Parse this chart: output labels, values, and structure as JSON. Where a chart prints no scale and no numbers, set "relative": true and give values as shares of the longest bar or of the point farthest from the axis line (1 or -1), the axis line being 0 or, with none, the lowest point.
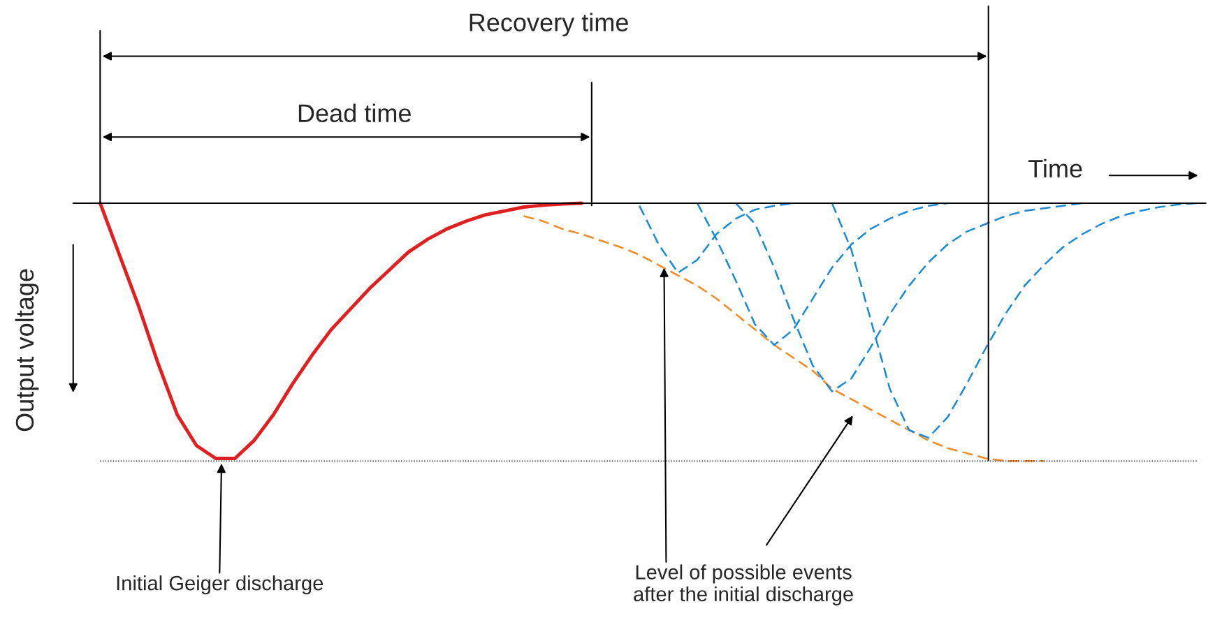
{
  "chart_data": {
    "type": "line",
    "relative": true,
    "xlabel": "Time",
    "ylabel": "Output voltage",
    "categories": [
      null,
      null,
      null,
      null,
      null,
      null,
      null,
      null,
      null,
      null,
      null,
      null,
      null,
      null,
      null,
      null,
      null,
      null,
      null,
      null,
      null,
      null,
      null,
      null,
      null,
      null,
      null,
      null,
      null,
      null,
      null,
      null,
      null,
      null,
      null,
      null,
      null,
      null,
      null,
      null,
      null,
      null,
      null,
      null,
      null,
      null,
      null,
      null,
      null,
      null,
      null,
      null,
      null,
      null,
      null,
      null,
      null,
      null
    ],
    "series": [
      {
        "color": "#e02020",
        "line_style": "solid",
        "values": [
          0,
          -0.2,
          -0.4,
          -0.62,
          -0.82,
          -0.94,
          -0.99,
          -0.99,
          -0.92,
          -0.82,
          -0.7,
          -0.59,
          -0.49,
          -0.41,
          -0.33,
          -0.26,
          -0.19,
          -0.14,
          -0.1,
          -0.07,
          -0.045,
          -0.03,
          -0.015,
          -0.008,
          -0.003,
          0,
          null,
          null,
          null,
          null,
          null,
          null,
          null,
          null,
          null,
          null,
          null,
          null,
          null,
          null,
          null,
          null,
          null,
          null,
          null,
          null,
          null,
          null,
          null,
          null,
          null,
          null,
          null,
          null,
          null,
          null,
          null,
          null
        ]
      },
      {
        "color": "#f08a24",
        "line_style": "dashed",
        "values": [
          null,
          null,
          null,
          null,
          null,
          null,
          null,
          null,
          null,
          null,
          null,
          null,
          null,
          null,
          null,
          null,
          null,
          null,
          null,
          null,
          null,
          null,
          -0.05,
          -0.07,
          -0.1,
          -0.12,
          -0.145,
          -0.17,
          -0.2,
          -0.24,
          -0.28,
          -0.32,
          -0.37,
          -0.43,
          -0.49,
          -0.55,
          -0.6,
          -0.65,
          -0.72,
          -0.76,
          -0.8,
          -0.84,
          -0.88,
          -0.92,
          -0.95,
          -0.97,
          -0.99,
          -1,
          -1,
          -1,
          null,
          null,
          null,
          null,
          null,
          null,
          null,
          null
        ]
      },
      {
        "color": "#1a8ad4",
        "line_style": "dashed",
        "values": [
          null,
          null,
          null,
          null,
          null,
          null,
          null,
          null,
          null,
          null,
          null,
          null,
          null,
          null,
          null,
          null,
          null,
          null,
          null,
          null,
          null,
          null,
          null,
          null,
          null,
          null,
          null,
          null,
          -0.01,
          -0.16,
          -0.27,
          -0.22,
          -0.12,
          -0.06,
          -0.025,
          -0.01,
          0,
          null,
          null,
          null,
          null,
          null,
          null,
          null,
          null,
          null,
          null,
          null,
          null,
          null,
          null,
          null,
          null,
          null,
          null,
          null,
          null,
          null
        ]
      },
      {
        "color": "#1a8ad4",
        "line_style": "dashed",
        "values": [
          null,
          null,
          null,
          null,
          null,
          null,
          null,
          null,
          null,
          null,
          null,
          null,
          null,
          null,
          null,
          null,
          null,
          null,
          null,
          null,
          null,
          null,
          null,
          null,
          null,
          null,
          null,
          null,
          null,
          null,
          null,
          0,
          -0.14,
          -0.3,
          -0.47,
          -0.55,
          -0.49,
          -0.37,
          -0.25,
          -0.16,
          -0.1,
          -0.06,
          -0.03,
          -0.01,
          0,
          null,
          null,
          null,
          null,
          null,
          null,
          null,
          null,
          null,
          null,
          null,
          null,
          null
        ]
      },
      {
        "color": "#1a8ad4",
        "line_style": "dashed",
        "values": [
          null,
          null,
          null,
          null,
          null,
          null,
          null,
          null,
          null,
          null,
          null,
          null,
          null,
          null,
          null,
          null,
          null,
          null,
          null,
          null,
          null,
          null,
          null,
          null,
          null,
          null,
          null,
          null,
          null,
          null,
          null,
          null,
          null,
          0,
          -0.08,
          -0.25,
          -0.45,
          -0.63,
          -0.73,
          -0.68,
          -0.56,
          -0.43,
          -0.32,
          -0.23,
          -0.16,
          -0.11,
          -0.08,
          -0.05,
          -0.03,
          -0.02,
          -0.01,
          0,
          null,
          null,
          null,
          null,
          null,
          null
        ]
      },
      {
        "color": "#1a8ad4",
        "line_style": "dashed",
        "values": [
          null,
          null,
          null,
          null,
          null,
          null,
          null,
          null,
          null,
          null,
          null,
          null,
          null,
          null,
          null,
          null,
          null,
          null,
          null,
          null,
          null,
          null,
          null,
          null,
          null,
          null,
          null,
          null,
          null,
          null,
          null,
          null,
          null,
          null,
          null,
          null,
          null,
          null,
          0,
          -0.18,
          -0.45,
          -0.72,
          -0.88,
          -0.91,
          -0.83,
          -0.7,
          -0.56,
          -0.43,
          -0.32,
          -0.24,
          -0.17,
          -0.12,
          -0.08,
          -0.05,
          -0.03,
          -0.015,
          -0.005,
          0
        ]
      }
    ],
    "ref_lines": [
      {
        "axis": "y",
        "value": -1,
        "line_style": "dotted",
        "color": "#000000"
      }
    ],
    "annotations": [
      "Recovery time",
      "Dead time",
      "Initial Geiger discharge",
      "Level of possible events\nafter the initial discharge"
    ]
  }
}
